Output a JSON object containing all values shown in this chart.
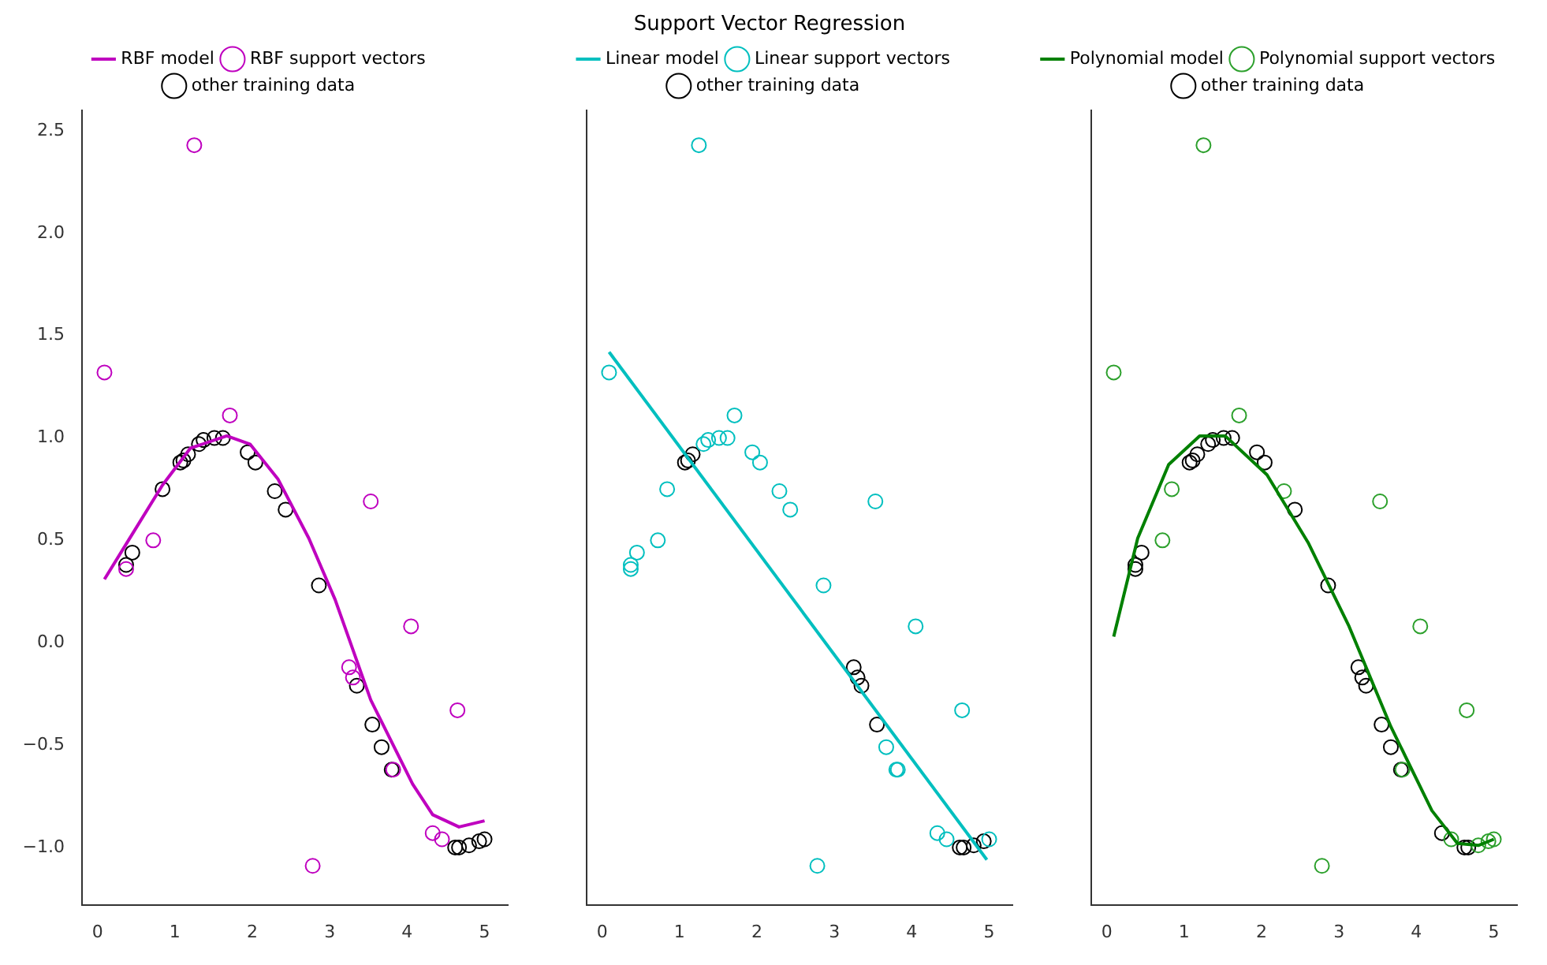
{
  "chart_data": [
    {
      "type": "scatter",
      "legend": "top",
      "xlim": [
        -0.2,
        5.3
      ],
      "ylim": [
        -1.28,
        2.6
      ],
      "xticks": [
        0,
        1,
        2,
        3,
        4,
        5
      ],
      "yticks": [
        {
          "value": -1,
          "label": "−1.0"
        },
        {
          "value": -0.5,
          "label": "−0.5"
        },
        {
          "value": 0,
          "label": "0.0"
        },
        0.5,
        {
          "value": 1,
          "label": "1.0"
        },
        1.5,
        {
          "value": 2,
          "label": "2.0"
        },
        2.5
      ],
      "series": [
        {
          "type": "line",
          "marker": "none",
          "name": "RBF model",
          "color": "#bf00bf",
          "x": [
            0.09,
            0.4,
            0.84,
            1.2,
            1.67,
            1.97,
            2.33,
            2.73,
            3.07,
            3.53,
            4.07,
            4.33,
            4.67,
            5.0
          ],
          "values": [
            0.31,
            0.5,
            0.77,
            0.95,
            1.01,
            0.97,
            0.8,
            0.51,
            0.21,
            -0.28,
            -0.69,
            -0.84,
            -0.9,
            -0.87
          ]
        },
        {
          "marker": "circle",
          "name": "RBF support vectors",
          "color": "#bf00bf",
          "x": [
            0.09,
            0.37,
            0.72,
            1.25,
            1.71,
            2.78,
            3.25,
            3.3,
            3.53,
            3.82,
            4.05,
            4.33,
            4.45,
            4.65
          ],
          "values": [
            1.32,
            0.36,
            0.5,
            2.43,
            1.11,
            -1.09,
            -0.12,
            -0.17,
            0.69,
            -0.62,
            0.08,
            -0.93,
            -0.96,
            -0.33
          ]
        },
        {
          "marker": "circle",
          "name": "other training data",
          "color": "#000000",
          "x": [
            0.37,
            0.45,
            0.84,
            1.07,
            1.11,
            1.17,
            1.31,
            1.37,
            1.51,
            1.62,
            1.94,
            2.04,
            2.29,
            2.43,
            2.86,
            3.35,
            3.55,
            3.67,
            3.8,
            4.62,
            4.67,
            4.8,
            4.93,
            5.0
          ],
          "values": [
            0.38,
            0.44,
            0.75,
            0.88,
            0.89,
            0.92,
            0.97,
            0.99,
            1.0,
            1.0,
            0.93,
            0.88,
            0.74,
            0.65,
            0.28,
            -0.21,
            -0.4,
            -0.51,
            -0.62,
            -1.0,
            -1.0,
            -0.99,
            -0.97,
            -0.96
          ]
        }
      ]
    },
    {
      "type": "scatter",
      "title": "Support Vector Regression",
      "legend": "top",
      "tick_labels": "x",
      "xlim": [
        -0.2,
        5.3
      ],
      "ylim": [
        -1.28,
        2.6
      ],
      "xticks": [
        0,
        1,
        2,
        3,
        4,
        5
      ],
      "yticks": [
        {
          "value": -1,
          "label": null
        },
        {
          "value": -0.5,
          "label": null
        },
        {
          "value": 0,
          "label": null
        },
        {
          "value": 0.5,
          "label": null
        },
        {
          "value": 1,
          "label": null
        },
        {
          "value": 1.5,
          "label": null
        },
        {
          "value": 2,
          "label": null
        },
        {
          "value": 2.5,
          "label": null
        }
      ],
      "series": [
        {
          "type": "line",
          "marker": "none",
          "name": "Linear model",
          "color": "#00bfbf",
          "x": [
            0.09,
            4.97
          ],
          "values": [
            1.42,
            -1.06
          ]
        },
        {
          "marker": "circle",
          "name": "Linear support vectors",
          "color": "#00bfbf",
          "x": [
            0.09,
            0.37,
            0.37,
            0.45,
            0.72,
            0.84,
            1.25,
            1.31,
            1.37,
            1.51,
            1.62,
            1.71,
            1.94,
            2.04,
            2.29,
            2.43,
            2.78,
            2.86,
            3.53,
            3.67,
            3.8,
            3.82,
            4.05,
            4.33,
            4.45,
            4.65,
            5.0
          ],
          "values": [
            1.32,
            0.36,
            0.38,
            0.44,
            0.5,
            0.75,
            2.43,
            0.97,
            0.99,
            1.0,
            1.0,
            1.11,
            0.93,
            0.88,
            0.74,
            0.65,
            -1.09,
            0.28,
            0.69,
            -0.51,
            -0.62,
            -0.62,
            0.08,
            -0.93,
            -0.96,
            -0.33,
            -0.96
          ]
        },
        {
          "marker": "circle",
          "name": "other training data",
          "color": "#000000",
          "x": [
            1.07,
            1.11,
            1.17,
            3.25,
            3.3,
            3.35,
            3.55,
            4.62,
            4.67,
            4.8,
            4.93
          ],
          "values": [
            0.88,
            0.89,
            0.92,
            -0.12,
            -0.17,
            -0.21,
            -0.4,
            -1.0,
            -1.0,
            -0.99,
            -0.97
          ]
        }
      ]
    },
    {
      "type": "scatter",
      "legend": "top",
      "tick_labels": "x",
      "xlim": [
        -0.2,
        5.3
      ],
      "ylim": [
        -1.28,
        2.6
      ],
      "xticks": [
        0,
        1,
        2,
        3,
        4,
        5
      ],
      "yticks": [
        {
          "value": -1,
          "label": null
        },
        {
          "value": -0.5,
          "label": null
        },
        {
          "value": 0,
          "label": null
        },
        {
          "value": 0.5,
          "label": null
        },
        {
          "value": 1,
          "label": null
        },
        {
          "value": 1.5,
          "label": null
        },
        {
          "value": 2,
          "label": null
        },
        {
          "value": 2.5,
          "label": null
        }
      ],
      "series": [
        {
          "type": "line",
          "marker": "none",
          "name": "Polynomial model",
          "color": "#008000",
          "x": [
            0.09,
            0.4,
            0.8,
            1.2,
            1.53,
            2.07,
            2.6,
            3.13,
            3.67,
            4.2,
            4.53,
            4.8,
            5.0
          ],
          "values": [
            0.03,
            0.51,
            0.87,
            1.01,
            1.01,
            0.82,
            0.49,
            0.08,
            -0.41,
            -0.82,
            -0.98,
            -0.99,
            -0.96
          ]
        },
        {
          "marker": "circle",
          "name": "Polynomial support vectors",
          "color": "#2ca02c",
          "x": [
            0.09,
            0.72,
            0.84,
            1.25,
            1.71,
            2.29,
            2.78,
            3.53,
            3.82,
            4.05,
            4.45,
            4.65,
            4.8,
            4.93,
            5.0
          ],
          "values": [
            1.32,
            0.5,
            0.75,
            2.43,
            1.11,
            0.74,
            -1.09,
            0.69,
            -0.62,
            0.08,
            -0.96,
            -0.33,
            -0.99,
            -0.97,
            -0.96
          ]
        },
        {
          "marker": "circle",
          "name": "other training data",
          "color": "#000000",
          "x": [
            0.37,
            0.37,
            0.45,
            1.07,
            1.11,
            1.17,
            1.31,
            1.37,
            1.51,
            1.62,
            1.94,
            2.04,
            2.43,
            2.86,
            3.25,
            3.3,
            3.35,
            3.55,
            3.67,
            3.8,
            4.33,
            4.62,
            4.67
          ],
          "values": [
            0.36,
            0.38,
            0.44,
            0.88,
            0.89,
            0.92,
            0.97,
            0.99,
            1.0,
            1.0,
            0.93,
            0.88,
            0.65,
            0.28,
            -0.12,
            -0.17,
            -0.21,
            -0.4,
            -0.51,
            -0.62,
            -0.93,
            -1.0,
            -1.0
          ]
        }
      ]
    }
  ]
}
